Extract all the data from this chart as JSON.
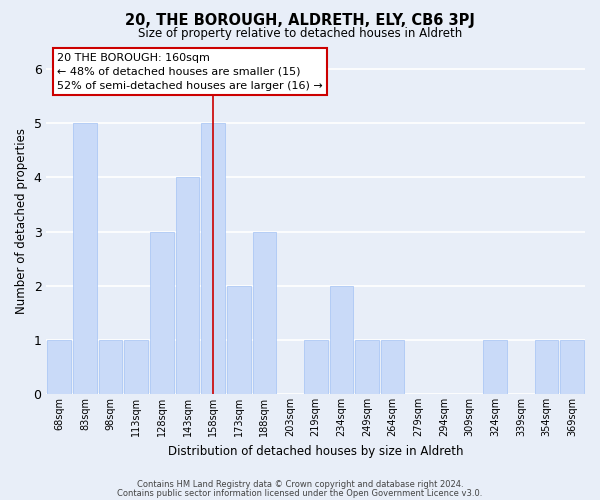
{
  "title": "20, THE BOROUGH, ALDRETH, ELY, CB6 3PJ",
  "subtitle": "Size of property relative to detached houses in Aldreth",
  "xlabel": "Distribution of detached houses by size in Aldreth",
  "ylabel": "Number of detached properties",
  "bar_labels": [
    "68sqm",
    "83sqm",
    "98sqm",
    "113sqm",
    "128sqm",
    "143sqm",
    "158sqm",
    "173sqm",
    "188sqm",
    "203sqm",
    "219sqm",
    "234sqm",
    "249sqm",
    "264sqm",
    "279sqm",
    "294sqm",
    "309sqm",
    "324sqm",
    "339sqm",
    "354sqm",
    "369sqm"
  ],
  "bar_values": [
    1,
    5,
    1,
    1,
    3,
    4,
    5,
    2,
    3,
    0,
    1,
    2,
    1,
    1,
    0,
    0,
    0,
    1,
    0,
    1,
    1
  ],
  "highlight_index": 6,
  "bar_color": "#c9daf8",
  "bar_edge_color": "#a4c2f4",
  "highlight_line_color": "#cc0000",
  "background_color": "#e8eef8",
  "grid_color": "#ffffff",
  "annotation_box_text": "20 THE BOROUGH: 160sqm\n← 48% of detached houses are smaller (15)\n52% of semi-detached houses are larger (16) →",
  "annotation_box_color": "#ffffff",
  "annotation_box_edge_color": "#cc0000",
  "footer_line1": "Contains HM Land Registry data © Crown copyright and database right 2024.",
  "footer_line2": "Contains public sector information licensed under the Open Government Licence v3.0.",
  "ylim": [
    0,
    6.4
  ],
  "yticks": [
    0,
    1,
    2,
    3,
    4,
    5,
    6
  ]
}
